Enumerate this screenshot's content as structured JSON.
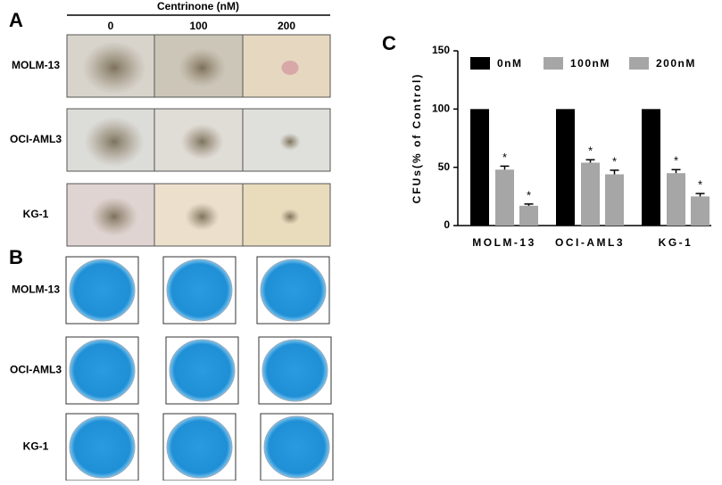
{
  "panel_a": {
    "label": "A",
    "header": "Centrinone (nM)",
    "columns": [
      "0",
      "100",
      "200"
    ],
    "rows": [
      "MOLM-13",
      "OCI-AML3",
      "KG-1"
    ]
  },
  "panel_b": {
    "label": "B",
    "rows": [
      "MOLM-13",
      "OCI-AML3",
      "KG-1"
    ]
  },
  "panel_c": {
    "label": "C"
  },
  "chart_data": {
    "type": "bar",
    "ylabel": "CFUs(% of Control)",
    "categories": [
      "MOLM-13",
      "OCI-AML3",
      "KG-1"
    ],
    "series": [
      {
        "name": "0nM",
        "color": "#000000",
        "values": [
          100,
          100,
          100
        ]
      },
      {
        "name": "100nM",
        "color": "#a6a6a6",
        "values": [
          48,
          54,
          45
        ],
        "errors": [
          3,
          2.5,
          3
        ],
        "annotations": [
          "*",
          "*",
          "*"
        ]
      },
      {
        "name": "200nM",
        "color": "#a6a6a6",
        "values": [
          17,
          44,
          25
        ],
        "errors": [
          1.5,
          3.5,
          2.5
        ],
        "annotations": [
          "*",
          "*",
          "*"
        ]
      }
    ],
    "ylim": [
      0,
      150
    ],
    "yticks": [
      0,
      50,
      100,
      150
    ],
    "legend": "top"
  }
}
